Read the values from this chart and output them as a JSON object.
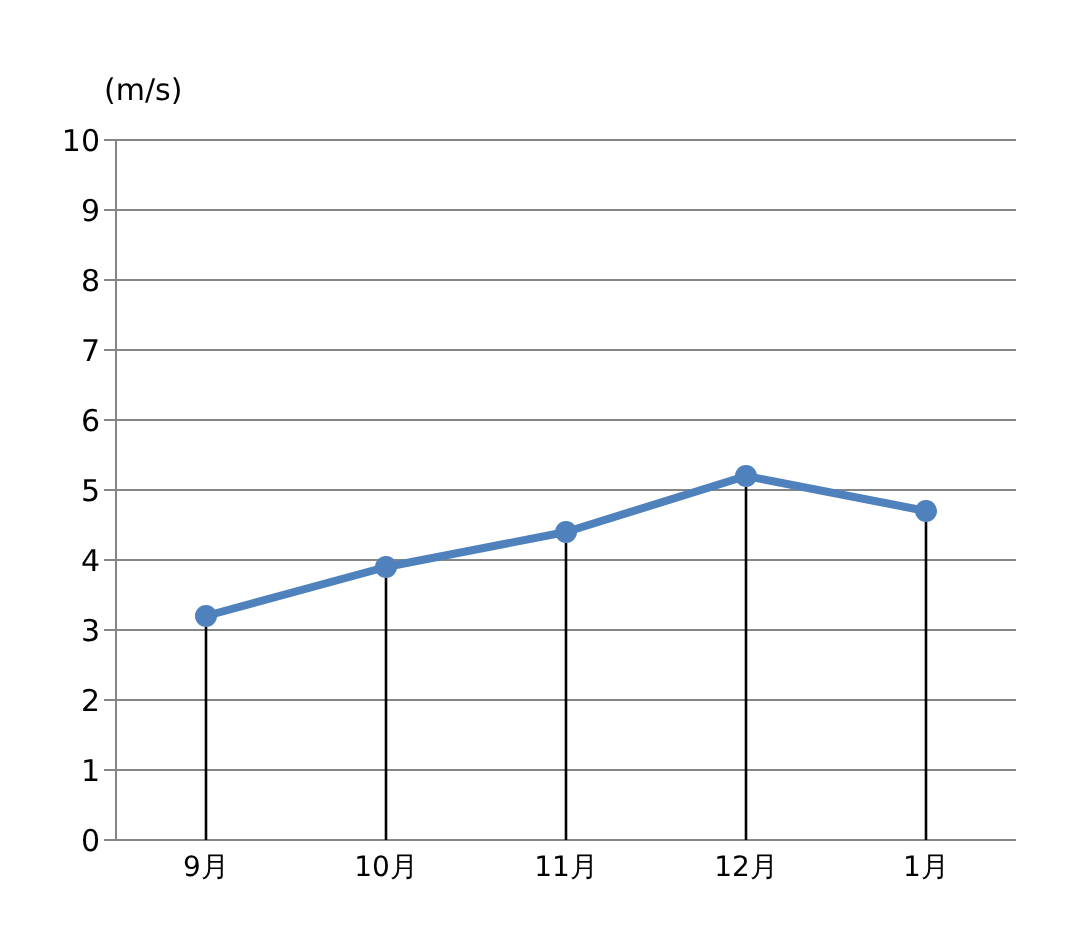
{
  "chart_data": {
    "type": "line",
    "ylabel": "(m/s)",
    "categories": [
      "9月",
      "10月",
      "11月",
      "12月",
      "1月"
    ],
    "series": [
      {
        "color": "#4f81bd",
        "marker": "none",
        "values": [
          3.2,
          3.9,
          4.4,
          5.2,
          4.7
        ]
      },
      {
        "type": "lollipop",
        "color": "#4f81bd",
        "values": [
          3.2,
          3.9,
          4.4,
          5.2,
          4.7
        ]
      }
    ],
    "ylim": [
      0,
      10
    ],
    "yticks": [
      0,
      1,
      2,
      3,
      4,
      5,
      6,
      7,
      8,
      9,
      10
    ],
    "grid": "y",
    "marker": "circle",
    "line_style": "solid",
    "legend": false
  }
}
